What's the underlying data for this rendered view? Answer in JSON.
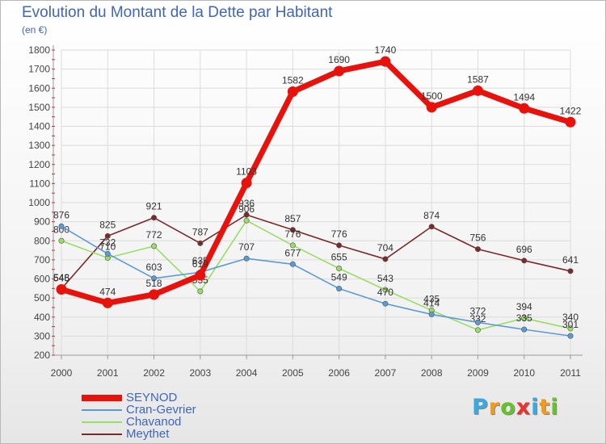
{
  "title": "Evolution du Montant de la Dette par Habitant",
  "subtitle": "(en €)",
  "brand": {
    "letters": [
      "P",
      "r",
      "o",
      "x",
      "i",
      "t",
      "i"
    ],
    "colors": [
      "#3aa9e0",
      "#f29a1c",
      "#66c12e",
      "#e8332e",
      "#3aa9e0",
      "#f29a1c",
      "#66c12e"
    ]
  },
  "chart_data": {
    "type": "line",
    "categories": [
      "2000",
      "2001",
      "2002",
      "2003",
      "2004",
      "2005",
      "2006",
      "2007",
      "2008",
      "2009",
      "2010",
      "2011"
    ],
    "ylim": [
      200,
      1800
    ],
    "yticks": [
      200,
      300,
      400,
      500,
      600,
      700,
      800,
      900,
      1000,
      1100,
      1200,
      1300,
      1400,
      1500,
      1600,
      1700,
      1800
    ],
    "grid": true,
    "legend_position": "bottom-left",
    "series": [
      {
        "name": "SEYNOD",
        "color": "#e8120c",
        "values": [
          545,
          474,
          518,
          619,
          1103,
          1582,
          1690,
          1740,
          1500,
          1587,
          1494,
          1422
        ]
      },
      {
        "name": "Cran-Gevrier",
        "color": "#5b9bd5",
        "values": [
          876,
          732,
          603,
          635,
          707,
          677,
          549,
          470,
          414,
          372,
          335,
          301
        ]
      },
      {
        "name": "Chavanod",
        "color": "#99dd66",
        "values": [
          800,
          710,
          772,
          535,
          906,
          776,
          655,
          543,
          435,
          332,
          394,
          340
        ]
      },
      {
        "name": "Meythet",
        "color": "#7a2a2a",
        "values": [
          548,
          825,
          921,
          787,
          936,
          857,
          776,
          704,
          874,
          756,
          696,
          641
        ]
      }
    ]
  }
}
